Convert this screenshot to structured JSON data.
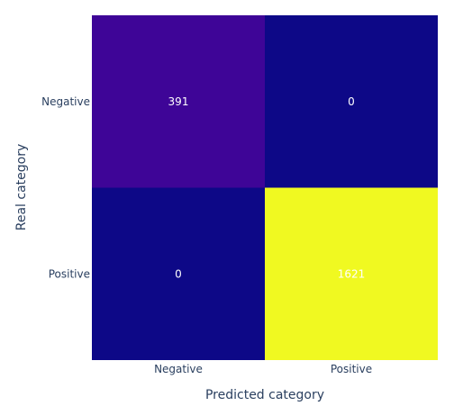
{
  "chart_data": {
    "type": "heatmap",
    "xlabel": "Predicted category",
    "ylabel": "Real category",
    "x_categories": [
      "Negative",
      "Positive"
    ],
    "y_categories": [
      "Negative",
      "Positive"
    ],
    "z": [
      [
        391,
        0
      ],
      [
        0,
        1621
      ]
    ],
    "colorscale": [
      "#0d0887",
      "#7201a8",
      "#f0f921"
    ],
    "grid": false,
    "legend": "none"
  }
}
